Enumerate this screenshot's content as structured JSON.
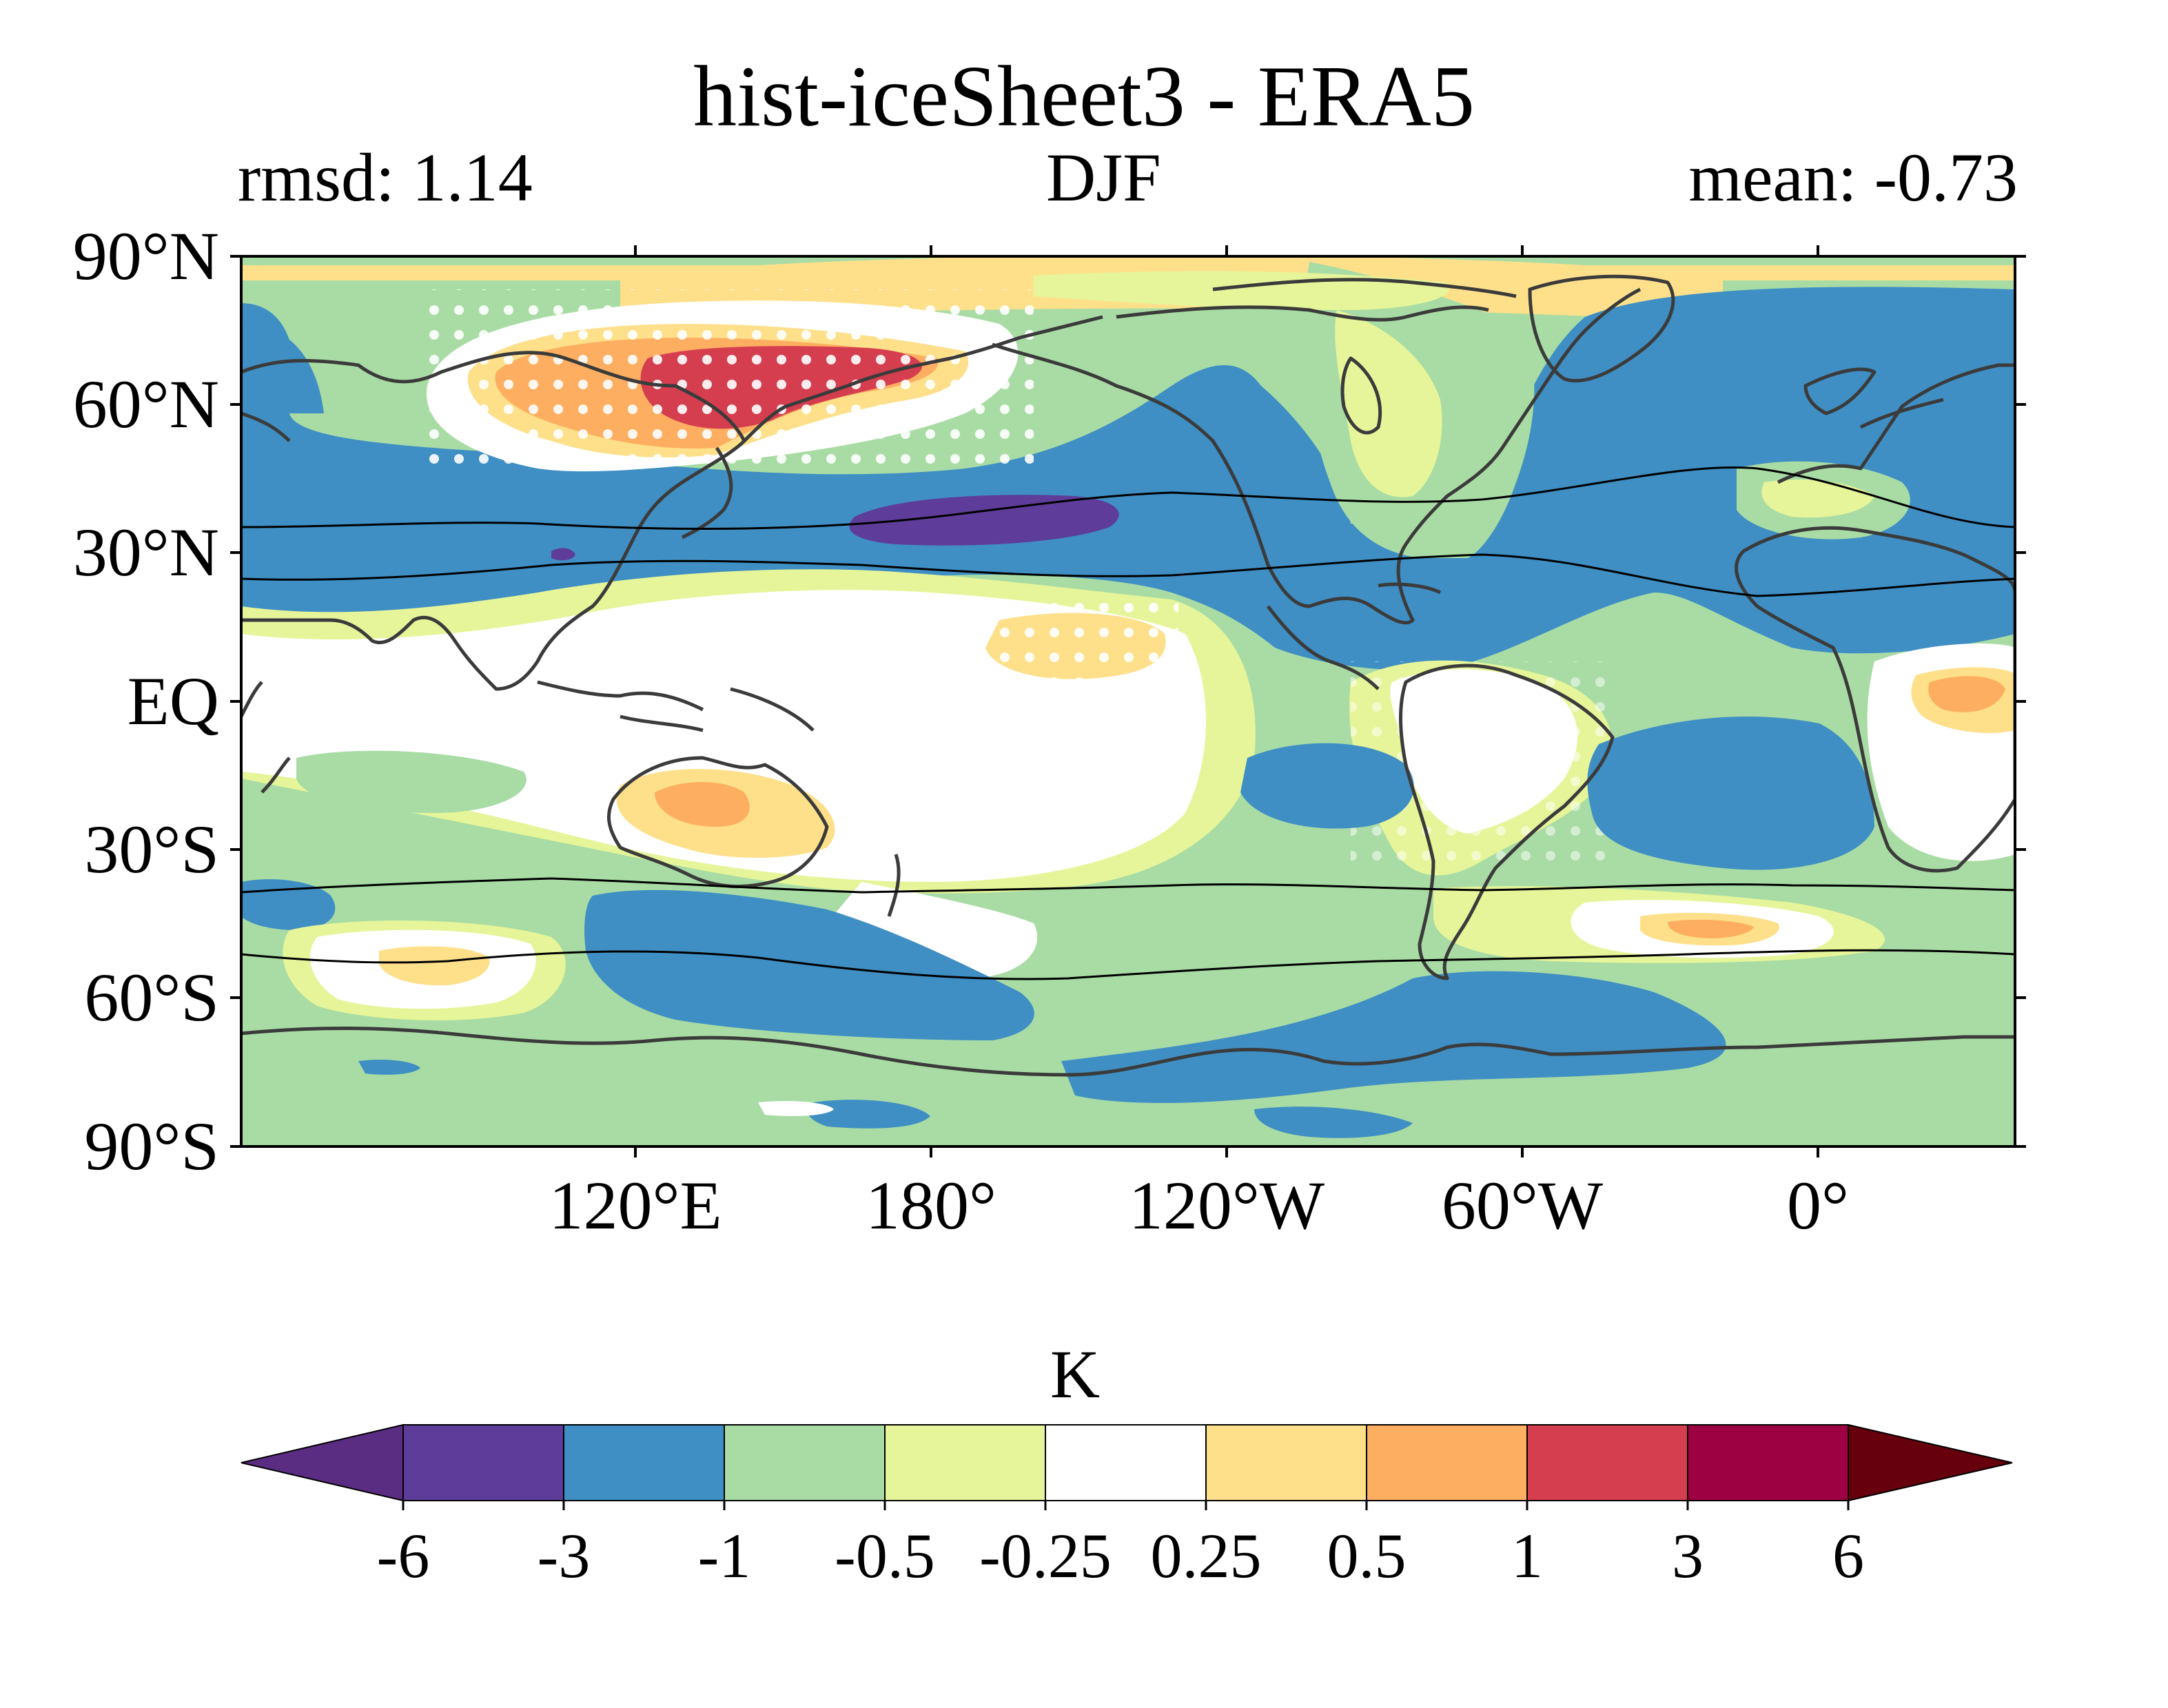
{
  "title": "hist-iceSheet3 - ERA5",
  "left_label": "rmsd: 1.14",
  "center_label": "DJF",
  "right_label": "mean: -0.73",
  "y_ticks": [
    "90°N",
    "60°N",
    "30°N",
    "EQ",
    "30°S",
    "60°S",
    "90°S"
  ],
  "x_ticks": [
    "120°E",
    "180°",
    "120°W",
    "60°W",
    "0°"
  ],
  "colorbar": {
    "units": "K",
    "ticks": [
      "-6",
      "-3",
      "-1",
      "-0.5",
      "-0.25",
      "0.25",
      "0.5",
      "1",
      "3",
      "6"
    ],
    "colors": [
      "#5e3c99",
      "#3f8fc4",
      "#a9dca4",
      "#e6f599",
      "#ffffff",
      "#fee08b",
      "#fdae61",
      "#d53e4f",
      "#9e0142"
    ],
    "extend_low_color": "#5b2d82",
    "extend_high_color": "#67000d"
  },
  "chart_data": {
    "type": "heatmap",
    "projection": "PlateCarree",
    "lon_range": [
      30,
      390
    ],
    "lat_range": [
      -90,
      90
    ],
    "levels": [
      -6,
      -3,
      -1,
      -0.5,
      -0.25,
      0.25,
      0.5,
      1,
      3,
      6
    ],
    "mean": -0.73,
    "rmsd": 1.14,
    "season": "DJF"
  }
}
